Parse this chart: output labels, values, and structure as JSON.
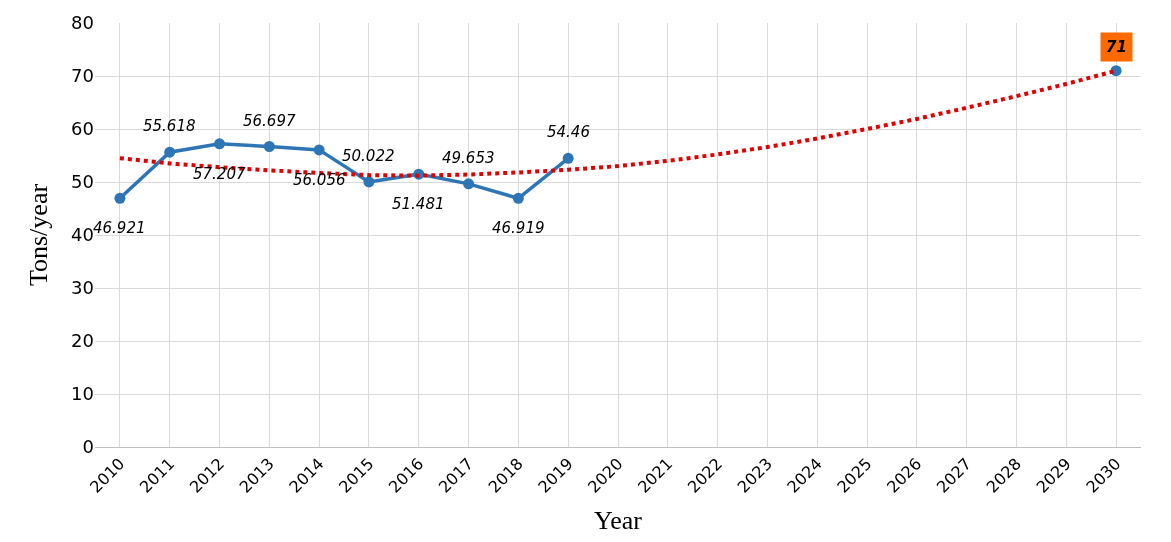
{
  "chart_data": {
    "type": "line",
    "xlabel": "Year",
    "ylabel": "Tons/year",
    "categories": [
      "2010",
      "2011",
      "2012",
      "2013",
      "2014",
      "2015",
      "2016",
      "2017",
      "2018",
      "2019",
      "2020",
      "2021",
      "2022",
      "2023",
      "2024",
      "2025",
      "2026",
      "2027",
      "2028",
      "2029",
      "2030"
    ],
    "series": [
      {
        "color": "#2e75b6",
        "marker": "circle",
        "line_style": "solid",
        "values": [
          46.921,
          55.618,
          57.207,
          56.697,
          56.056,
          50.022,
          51.481,
          49.653,
          46.919,
          54.46,
          null,
          null,
          null,
          null,
          null,
          null,
          null,
          null,
          null,
          null,
          71
        ],
        "value_labels": [
          "46.921",
          "55.618",
          "57.207",
          "56.697",
          "56.056",
          "50.022",
          "51.481",
          "49.653",
          "46.919",
          "54.46",
          null,
          null,
          null,
          null,
          null,
          null,
          null,
          null,
          null,
          null,
          "71"
        ]
      },
      {
        "color": "#e00000",
        "marker": "none",
        "line_style": "dotted",
        "values": [
          54.5,
          53.5,
          52.8,
          52.2,
          51.7,
          51.3,
          51.2,
          51.4,
          51.8,
          52.3,
          53.0,
          54.0,
          55.2,
          56.6,
          58.2,
          60.0,
          61.9,
          64.0,
          66.2,
          68.5,
          71
        ]
      }
    ],
    "ylim": [
      0,
      80
    ],
    "yticks": [
      0,
      10,
      20,
      30,
      40,
      50,
      60,
      70,
      80
    ],
    "grid": true
  }
}
